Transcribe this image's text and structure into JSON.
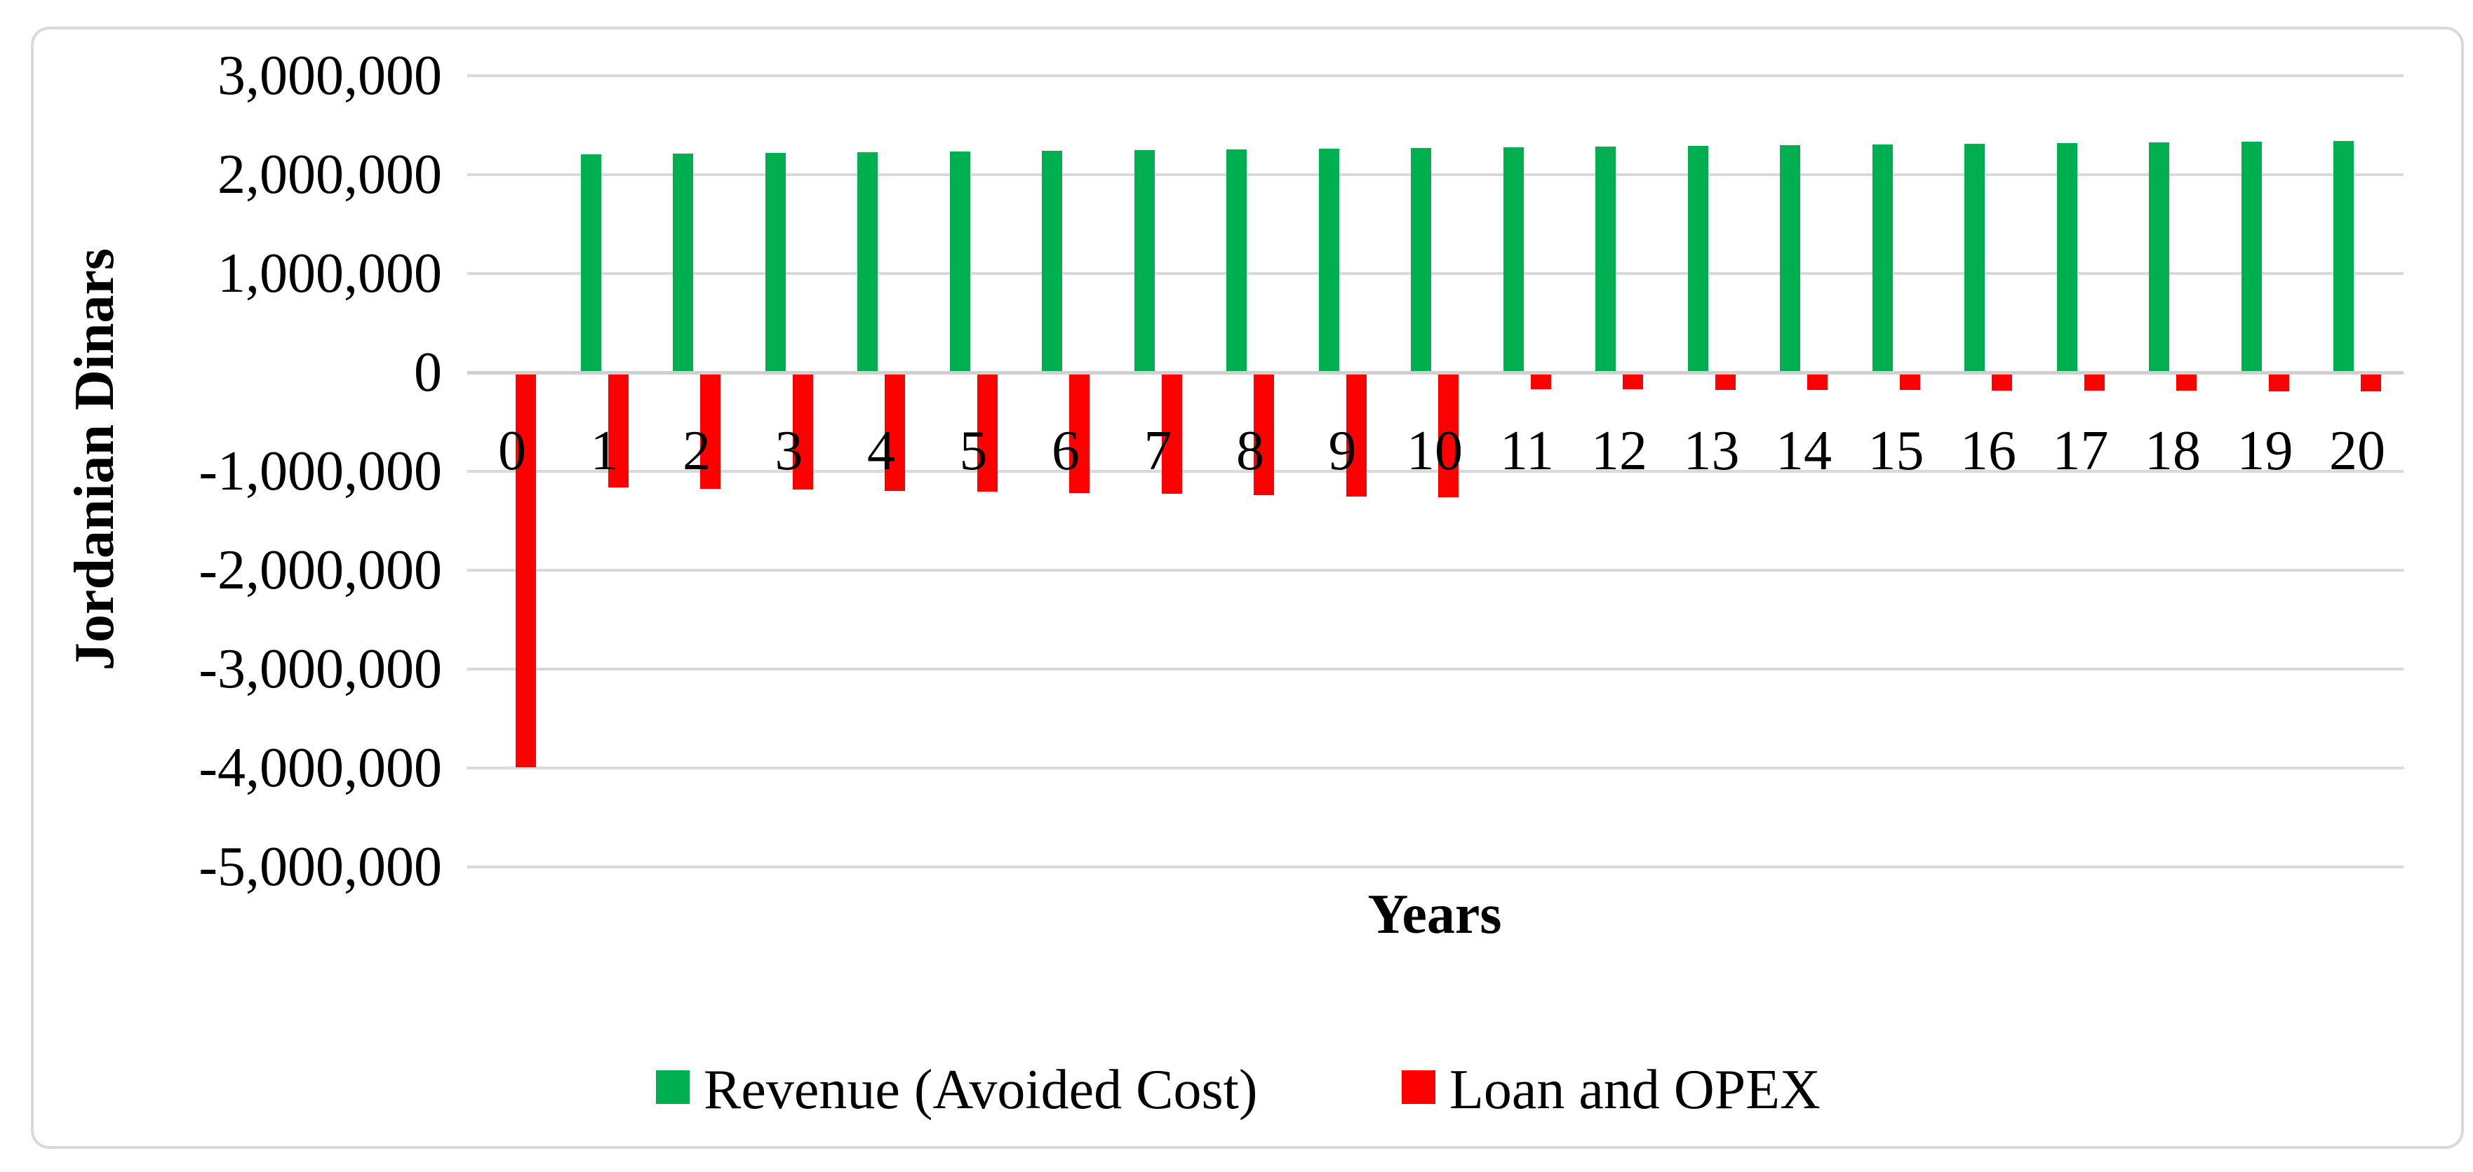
{
  "chart_data": {
    "type": "bar",
    "title": "",
    "xlabel": "Years",
    "ylabel": "Jordanian Dinars",
    "categories": [
      0,
      1,
      2,
      3,
      4,
      5,
      6,
      7,
      8,
      9,
      10,
      11,
      12,
      13,
      14,
      15,
      16,
      17,
      18,
      19,
      20
    ],
    "series": [
      {
        "name": "Revenue (Avoided Cost)",
        "color": "#00B050",
        "values": [
          0,
          2205000,
          2212000,
          2219000,
          2226000,
          2233000,
          2240000,
          2247000,
          2254000,
          2261000,
          2268000,
          2275000,
          2282000,
          2289000,
          2296000,
          2303000,
          2310000,
          2317000,
          2324000,
          2331000,
          2338000
        ]
      },
      {
        "name": "Loan and OPEX",
        "color": "#FF0000",
        "values": [
          -3980000,
          -1150000,
          -1161000,
          -1172000,
          -1183000,
          -1194000,
          -1205000,
          -1216000,
          -1227000,
          -1238000,
          -1249000,
          -155000,
          -157500,
          -160000,
          -162500,
          -165000,
          -167500,
          -170000,
          -172500,
          -175000,
          -177500
        ]
      }
    ],
    "ylim": [
      -5000000,
      3000000
    ],
    "y_tick_step": 1000000,
    "y_ticks": [
      {
        "value": 3000000,
        "label": "3,000,000"
      },
      {
        "value": 2000000,
        "label": "2,000,000"
      },
      {
        "value": 1000000,
        "label": "1,000,000"
      },
      {
        "value": 0,
        "label": "0"
      },
      {
        "value": -1000000,
        "label": "-1,000,000"
      },
      {
        "value": -2000000,
        "label": "-2,000,000"
      },
      {
        "value": -3000000,
        "label": "-3,000,000"
      },
      {
        "value": -4000000,
        "label": "-4,000,000"
      },
      {
        "value": -5000000,
        "label": "-5,000,000"
      }
    ],
    "grid": true,
    "legend_position": "bottom",
    "colors": {
      "revenue": "#00B050",
      "loan": "#FF0000",
      "gridline": "#D9D9D9",
      "axis_line": "#D0D0D0",
      "border": "#D9D9D9",
      "text": "#000000"
    }
  }
}
